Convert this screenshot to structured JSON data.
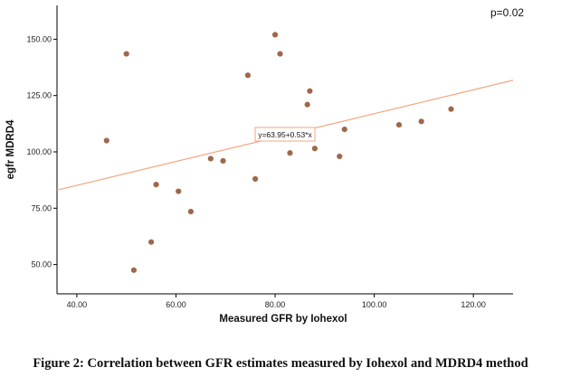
{
  "chart_data": {
    "type": "scatter",
    "xlabel": "Measured GFR by Iohexol",
    "ylabel": "egfr MDRD4",
    "xlim": [
      36,
      128
    ],
    "ylim": [
      37,
      165
    ],
    "x_ticks": [
      40,
      60,
      80,
      100,
      120
    ],
    "x_tick_labels": [
      "40.00",
      "60.00",
      "80.00",
      "100.00",
      "120.00"
    ],
    "y_ticks": [
      50,
      75,
      100,
      125,
      150
    ],
    "y_tick_labels": [
      "50.00",
      "75.00",
      "100.00",
      "125.00",
      "150.00"
    ],
    "grid": false,
    "annotations": {
      "pvalue": "p=0.02",
      "fit_label": "y=63.95+0.53*x"
    },
    "fit_line": {
      "intercept": 63.95,
      "slope": 0.53
    },
    "colors": {
      "points": "#a0674b",
      "fit": "#f4a582",
      "axis": "#000000"
    },
    "points": [
      {
        "x": 46,
        "y": 105
      },
      {
        "x": 50,
        "y": 143.5
      },
      {
        "x": 51.5,
        "y": 47.5
      },
      {
        "x": 55,
        "y": 60
      },
      {
        "x": 56,
        "y": 85.5
      },
      {
        "x": 60.5,
        "y": 82.5
      },
      {
        "x": 63,
        "y": 73.5
      },
      {
        "x": 67,
        "y": 97
      },
      {
        "x": 69.5,
        "y": 96
      },
      {
        "x": 74.5,
        "y": 134
      },
      {
        "x": 76,
        "y": 88
      },
      {
        "x": 80,
        "y": 152
      },
      {
        "x": 81,
        "y": 143.5
      },
      {
        "x": 83,
        "y": 99.5
      },
      {
        "x": 86.5,
        "y": 121
      },
      {
        "x": 87,
        "y": 127
      },
      {
        "x": 88,
        "y": 101.5
      },
      {
        "x": 93,
        "y": 98
      },
      {
        "x": 94,
        "y": 110
      },
      {
        "x": 105,
        "y": 112
      },
      {
        "x": 109.5,
        "y": 113.5
      },
      {
        "x": 115.5,
        "y": 119
      }
    ]
  },
  "figure": {
    "caption": "Figure 2: Correlation between GFR estimates measured by Iohexol and MDRD4 method"
  }
}
